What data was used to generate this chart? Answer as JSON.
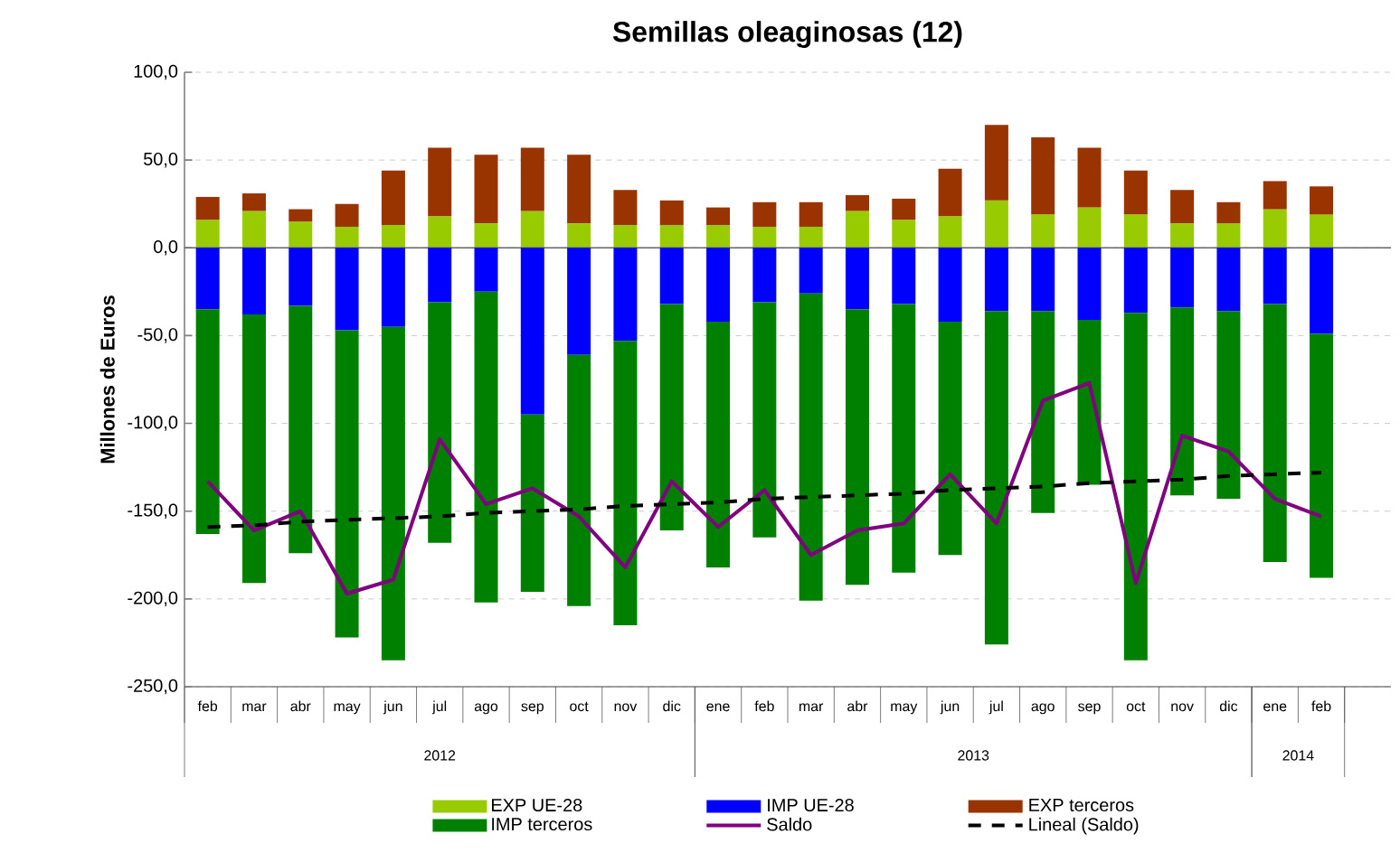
{
  "chart_data": {
    "type": "bar",
    "stacked": true,
    "title": "Semillas oleaginosas (12)",
    "ylabel": "Millones de Euros",
    "categories": [
      "feb",
      "mar",
      "abr",
      "may",
      "jun",
      "jul",
      "ago",
      "sep",
      "oct",
      "nov",
      "dic",
      "ene",
      "feb",
      "mar",
      "abr",
      "may",
      "jun",
      "jul",
      "ago",
      "sep",
      "oct",
      "nov",
      "dic",
      "ene",
      "feb"
    ],
    "annotations": [
      "2012",
      "2013",
      "2014"
    ],
    "ylim": [
      -250,
      100
    ],
    "yticks": [
      {
        "value": -250,
        "label": "-250,0"
      },
      {
        "value": -200,
        "label": "-200,0"
      },
      {
        "value": -150,
        "label": "-150,0"
      },
      {
        "value": -100,
        "label": "-100,0"
      },
      {
        "value": -50,
        "label": "-50,0"
      },
      {
        "value": 0,
        "label": "0,0"
      },
      {
        "value": 50,
        "label": "50,0"
      },
      {
        "value": 100,
        "label": "100,0"
      }
    ],
    "grid": "y",
    "legend": "bottom",
    "series": [
      {
        "name": "EXP UE-28",
        "color": "#99cc00",
        "values": [
          16,
          21,
          15,
          12,
          13,
          18,
          14,
          21,
          14,
          13,
          13,
          13,
          12,
          12,
          21,
          16,
          18,
          27,
          19,
          23,
          19,
          14,
          14,
          22,
          19
        ]
      },
      {
        "name": "IMP UE-28",
        "color": "#0000ff",
        "values": [
          -35,
          -38,
          -33,
          -47,
          -45,
          -31,
          -25,
          -95,
          -61,
          -53,
          -32,
          -42,
          -31,
          -26,
          -35,
          -32,
          -42,
          -36,
          -36,
          -41,
          -37,
          -34,
          -36,
          -32,
          -49
        ]
      },
      {
        "name": "EXP terceros",
        "color": "#993300",
        "values": [
          13,
          10,
          7,
          13,
          31,
          39,
          39,
          36,
          39,
          20,
          14,
          10,
          14,
          14,
          9,
          12,
          27,
          43,
          44,
          34,
          25,
          19,
          12,
          16,
          16
        ]
      },
      {
        "name": "IMP terceros",
        "color": "#008000",
        "values": [
          -128,
          -153,
          -141,
          -175,
          -190,
          -137,
          -177,
          -101,
          -143,
          -162,
          -129,
          -140,
          -134,
          -175,
          -157,
          -153,
          -133,
          -190,
          -115,
          -94,
          -198,
          -107,
          -107,
          -147,
          -139
        ]
      },
      {
        "name": "Saldo",
        "type": "line",
        "color": "#800080",
        "values": [
          -133,
          -161,
          -150,
          -197,
          -189,
          -109,
          -146,
          -137,
          -153,
          -182,
          -133,
          -159,
          -138,
          -175,
          -161,
          -157,
          -129,
          -157,
          -87,
          -77,
          -191,
          -107,
          -116,
          -143,
          -153
        ]
      },
      {
        "name": "Lineal (Saldo)",
        "type": "line",
        "line_style": "dashed",
        "color": "#000000",
        "values": [
          -159,
          -158,
          -156,
          -155,
          -154,
          -153,
          -151,
          -150,
          -149,
          -147,
          -146,
          -145,
          -143,
          -142,
          -141,
          -140,
          -138,
          -137,
          -136,
          -134,
          -133,
          -132,
          -130,
          -129,
          -128
        ]
      }
    ]
  }
}
